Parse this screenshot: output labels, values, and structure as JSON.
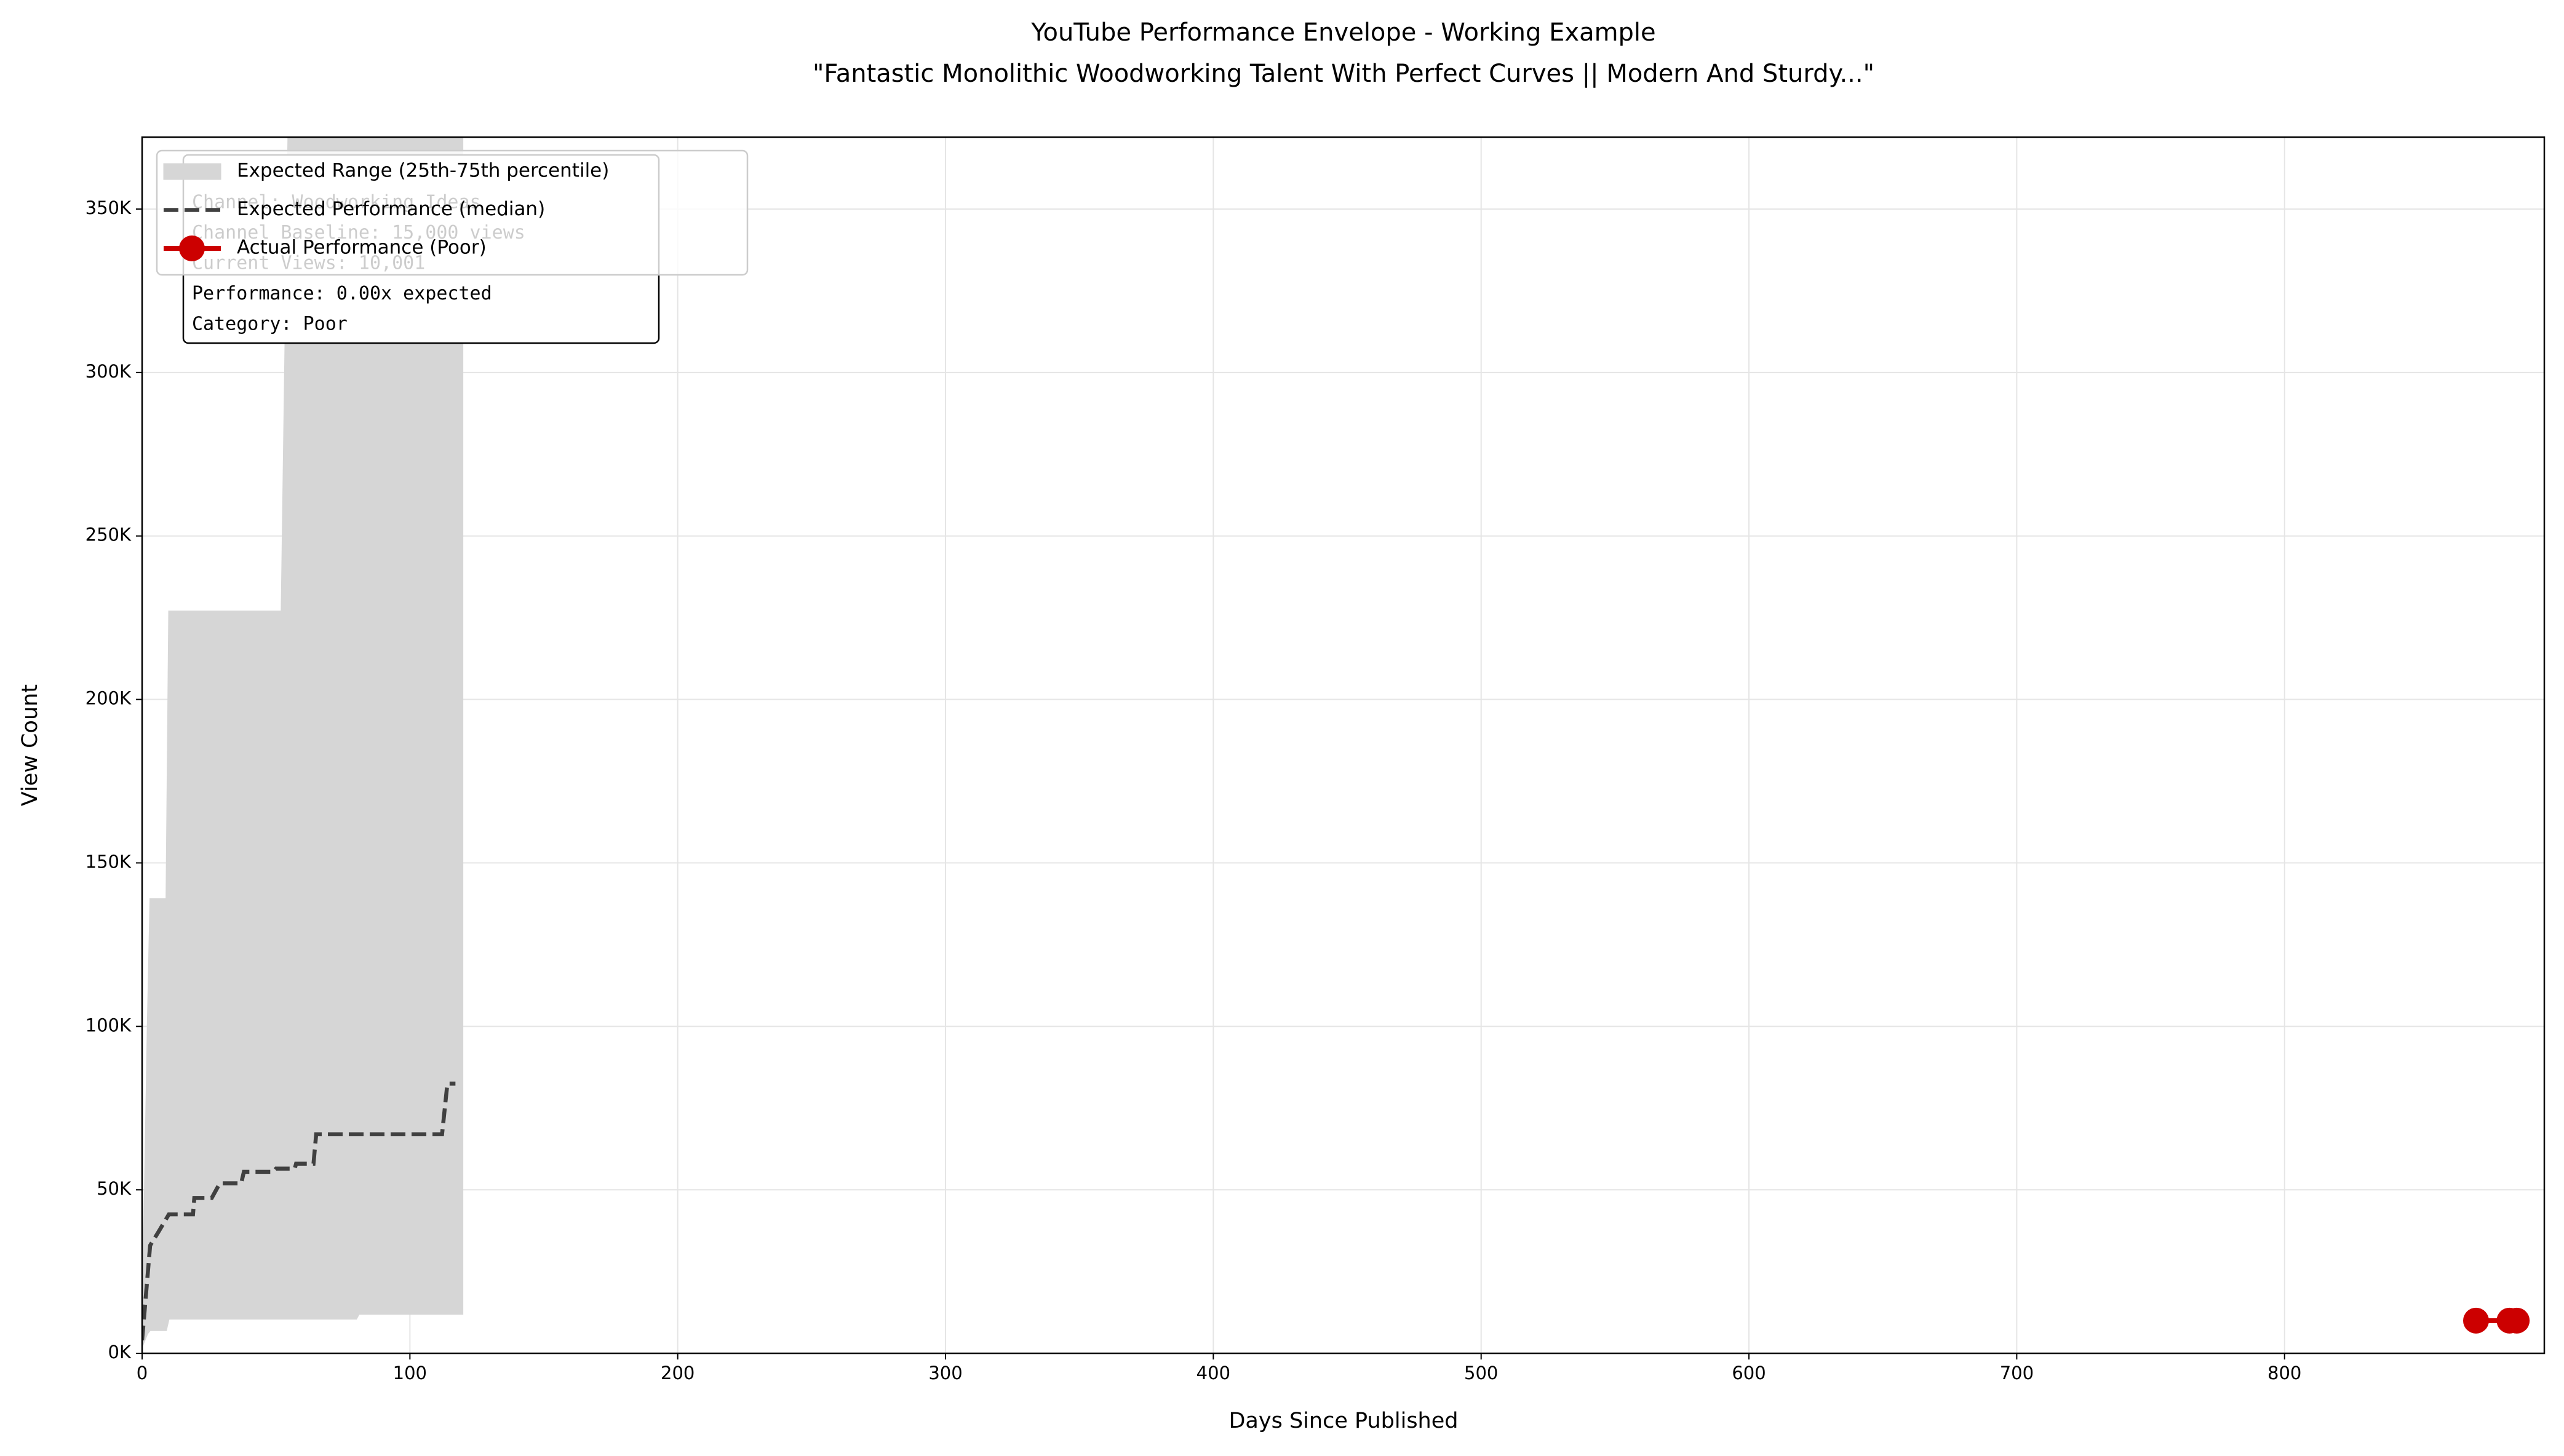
{
  "chart_data": {
    "type": "line",
    "title": "YouTube Performance Envelope - Working Example",
    "subtitle": "\"Fantastic Monolithic Woodworking Talent With Perfect Curves || Modern And Sturdy...\"",
    "x_label": "Days Since Published",
    "y_label": "View Count",
    "xlim": [
      0,
      897
    ],
    "ylim": [
      0,
      372000
    ],
    "xticks": [
      0,
      100,
      200,
      300,
      400,
      500,
      600,
      700,
      800
    ],
    "yticks": [
      {
        "value": 0,
        "label": "0K"
      },
      {
        "value": 50000,
        "label": "50K"
      },
      {
        "value": 100000,
        "label": "100K"
      },
      {
        "value": 150000,
        "label": "150K"
      },
      {
        "value": 200000,
        "label": "200K"
      },
      {
        "value": 250000,
        "label": "250K"
      },
      {
        "value": 300000,
        "label": "300K"
      },
      {
        "value": 350000,
        "label": "350K"
      }
    ],
    "grid": true,
    "legend": "upper left",
    "series": [
      {
        "name": "Expected Range (25th-75th percentile)",
        "kind": "band",
        "color": "#d6d6d6",
        "x": [
          0,
          2,
          3,
          9,
          10,
          52,
          55,
          80,
          81,
          119.7
        ],
        "lower": [
          2000,
          6000,
          7000,
          7000,
          10500,
          10500,
          10500,
          10500,
          12000,
          12000
        ],
        "upper": [
          5000,
          100000,
          139000,
          139000,
          227000,
          227000,
          400000,
          400000,
          400000,
          400000
        ]
      },
      {
        "name": "Expected Performance (median)",
        "kind": "dashed",
        "color": "#404040",
        "x": [
          0,
          3,
          6,
          10,
          19,
          19.5,
          26,
          29,
          37,
          38,
          49,
          50,
          57,
          57.5,
          64,
          65,
          112,
          114,
          117
        ],
        "values": [
          4000,
          33000,
          37000,
          42500,
          42500,
          47500,
          47500,
          52000,
          52000,
          55500,
          55500,
          56500,
          56500,
          58000,
          58000,
          67000,
          67000,
          82500,
          82500
        ]
      },
      {
        "name": "Actual Performance (Poor)",
        "kind": "markers",
        "color": "#cc0000",
        "x": [
          871.5,
          884,
          886.7
        ],
        "values": [
          10001,
          10001,
          10001
        ]
      }
    ],
    "annotation": [
      "Channel: Woodworking Ideas",
      "Channel Baseline: 15,000 views",
      "Current Views: 10,001",
      "Performance: 0.00x expected",
      "Category: Poor"
    ]
  }
}
